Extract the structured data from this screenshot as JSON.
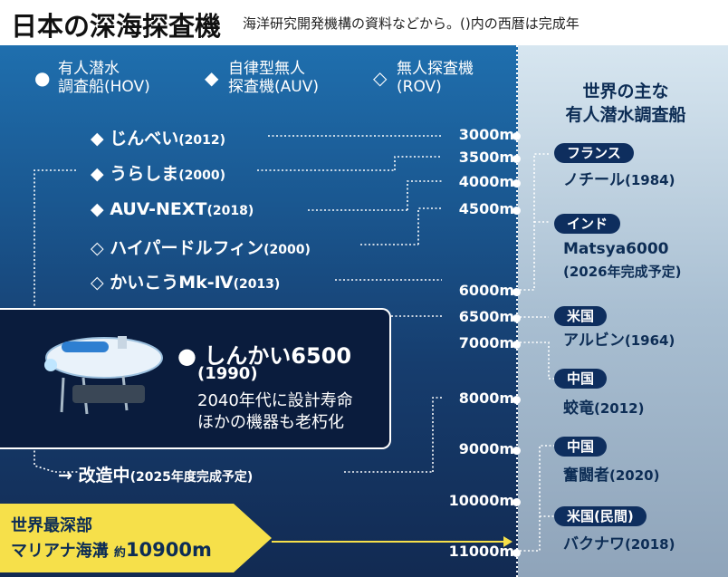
{
  "title": "日本の深海探査機",
  "subtitle": "海洋研究開発機構の資料などから。()内の西暦は完成年",
  "legend": [
    {
      "symbol": "●",
      "label1": "有人潜水",
      "label2": "調査船(HOV)"
    },
    {
      "symbol": "◆",
      "label1": "自律型無人",
      "label2": "探査機(AUV)"
    },
    {
      "symbol": "◇",
      "label1": "無人探査機",
      "label2": "(ROV)"
    }
  ],
  "vehicles": [
    {
      "symbol": "◆",
      "name": "じんべい",
      "year": "(2012)"
    },
    {
      "symbol": "◆",
      "name": "うらしま",
      "year": "(2000)"
    },
    {
      "symbol": "◆",
      "name": "AUV-NEXT",
      "year": "(2018)"
    },
    {
      "symbol": "◇",
      "name": "ハイパードルフィン",
      "year": "(2000)"
    },
    {
      "symbol": "◇",
      "name": "かいこうMk-Ⅳ",
      "year": "(2013)"
    }
  ],
  "shinkai": {
    "symbol": "●",
    "name": "しんかい6500",
    "year": "(1990)",
    "note1": "2040年代に設計寿命",
    "note2": "ほかの機器も老朽化"
  },
  "renovation": {
    "arrow": "→",
    "label": "改造中",
    "detail": "(2025年度完成予定)"
  },
  "depths": [
    "3000m",
    "3500m",
    "4000m",
    "4500m",
    "6000m",
    "6500m",
    "7000m",
    "8000m",
    "9000m",
    "10000m",
    "11000m"
  ],
  "trench": {
    "line1": "世界最深部",
    "line2": "マリアナ海溝",
    "approx": "約",
    "depth": "10900m"
  },
  "world_panel": {
    "title1": "世界の主な",
    "title2": "有人潜水調査船",
    "items": [
      {
        "country": "フランス",
        "name": "ノチール",
        "year": "(1984)"
      },
      {
        "country": "インド",
        "name": "Matsya6000",
        "year": "(2026年完成予定)"
      },
      {
        "country": "米国",
        "name": "アルビン",
        "year": "(1964)"
      },
      {
        "country": "中国",
        "name": "蛟竜",
        "year": "(2012)"
      },
      {
        "country": "中国",
        "name": "奮闘者",
        "year": "(2020)"
      },
      {
        "country": "米国(民間)",
        "name": "バクナワ",
        "year": "(2018)"
      }
    ]
  },
  "colors": {
    "ocean_top": "#1f6fae",
    "ocean_bottom": "#122a52",
    "panel_light": "#d7e6f0",
    "badge": "#0e2e5e",
    "trench": "#f6e04a",
    "box": "#0a1c3d"
  }
}
